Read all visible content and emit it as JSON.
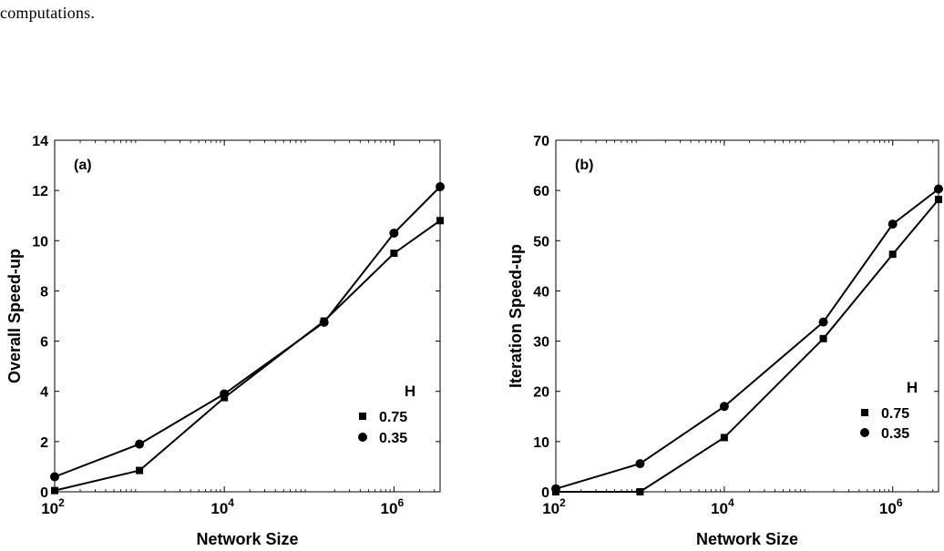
{
  "page": {
    "top_text": "computations."
  },
  "chart_data": [
    {
      "type": "line",
      "panel_label": "(a)",
      "xlabel": "Network Size",
      "ylabel": "Overall Speed-up",
      "xscale": "log",
      "xlim": [
        100,
        3500000
      ],
      "ylim": [
        0,
        14
      ],
      "xticks": [
        100,
        10000,
        1000000
      ],
      "xtick_labels": [
        {
          "base": "10",
          "exp": "2"
        },
        {
          "base": "10",
          "exp": "4"
        },
        {
          "base": "10",
          "exp": "6"
        }
      ],
      "yticks": [
        0,
        2,
        4,
        6,
        8,
        10,
        12,
        14
      ],
      "ytick_labels": [
        "0",
        "2",
        "4",
        "6",
        "8",
        "10",
        "12",
        "14"
      ],
      "grid": false,
      "legend_title": "H",
      "legend_placement": "right",
      "series": [
        {
          "name": "0.75",
          "marker": "square",
          "x": [
            100,
            1000,
            10000,
            150000,
            1000000,
            3500000
          ],
          "y": [
            0.05,
            0.85,
            3.75,
            6.8,
            9.5,
            10.8
          ]
        },
        {
          "name": "0.35",
          "marker": "circle",
          "x": [
            100,
            1000,
            10000,
            150000,
            1000000,
            3500000
          ],
          "y": [
            0.6,
            1.9,
            3.9,
            6.75,
            10.3,
            12.15
          ]
        }
      ]
    },
    {
      "type": "line",
      "panel_label": "(b)",
      "xlabel": "Network Size",
      "ylabel": "Iteration Speed-up",
      "xscale": "log",
      "xlim": [
        100,
        3500000
      ],
      "ylim": [
        0,
        70
      ],
      "xticks": [
        100,
        10000,
        1000000
      ],
      "xtick_labels": [
        {
          "base": "10",
          "exp": "2"
        },
        {
          "base": "10",
          "exp": "4"
        },
        {
          "base": "10",
          "exp": "6"
        }
      ],
      "yticks": [
        0,
        10,
        20,
        30,
        40,
        50,
        60,
        70
      ],
      "ytick_labels": [
        "0",
        "10",
        "20",
        "30",
        "40",
        "50",
        "60",
        "70"
      ],
      "grid": false,
      "legend_title": "H",
      "legend_placement": "right",
      "series": [
        {
          "name": "0.75",
          "marker": "square",
          "x": [
            100,
            1000,
            10000,
            150000,
            1000000,
            3500000
          ],
          "y": [
            0,
            0,
            10.8,
            30.5,
            47.3,
            58.2
          ]
        },
        {
          "name": "0.35",
          "marker": "circle",
          "x": [
            100,
            1000,
            10000,
            150000,
            1000000,
            3500000
          ],
          "y": [
            0.6,
            5.6,
            17,
            33.8,
            53.3,
            60.3
          ]
        }
      ]
    }
  ]
}
